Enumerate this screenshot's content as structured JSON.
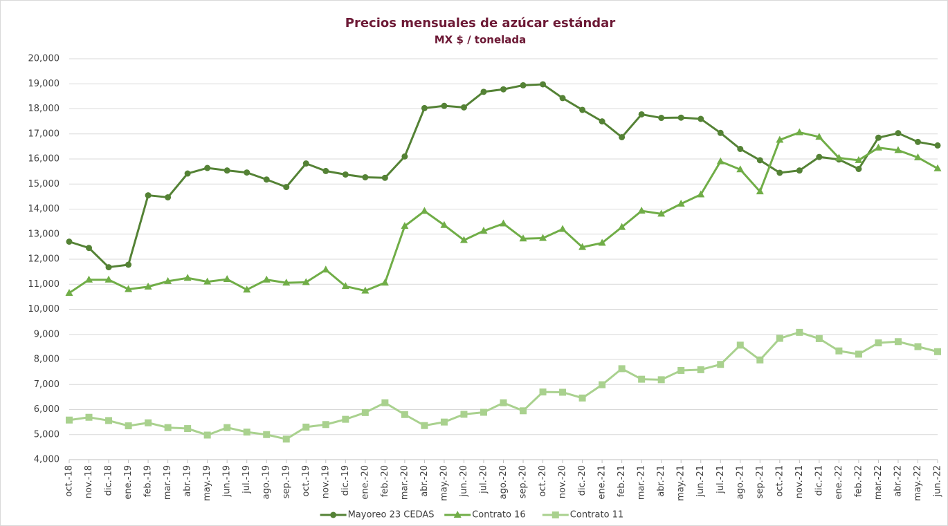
{
  "chart_data": {
    "type": "line",
    "title": "Precios mensuales de azúcar estándar",
    "subtitle": "MX $ / tonelada",
    "categories": [
      "oct.-18",
      "nov.-18",
      "dic.-18",
      "ene.-19",
      "feb.-19",
      "mar.-19",
      "abr.-19",
      "may.-19",
      "jun.-19",
      "jul.-19",
      "ago.-19",
      "sep.-19",
      "oct.-19",
      "nov.-19",
      "dic.-19",
      "ene.-20",
      "feb.-20",
      "mar.-20",
      "abr.-20",
      "may.-20",
      "jun.-20",
      "jul.-20",
      "ago.-20",
      "sep.-20",
      "oct.-20",
      "nov.-20",
      "dic.-20",
      "ene.-21",
      "feb.-21",
      "mar.-21",
      "abr.-21",
      "may.-21",
      "jun.-21",
      "jul.-21",
      "ago.-21",
      "sep.-21",
      "oct.-21",
      "nov.-21",
      "dic.-21",
      "ene.-22",
      "feb.-22",
      "mar.-22",
      "abr.-22",
      "may.-22",
      "jun.-22"
    ],
    "series": [
      {
        "name": "Mayoreo 23 CEDAS",
        "color": "#548235",
        "marker": "circle",
        "values": [
          12700,
          12450,
          11680,
          11780,
          14550,
          14470,
          15420,
          15640,
          15540,
          15460,
          15180,
          14880,
          15820,
          15520,
          15380,
          15270,
          15250,
          16100,
          18030,
          18120,
          18060,
          18680,
          18780,
          18940,
          18980,
          18430,
          17960,
          17500,
          16870,
          17780,
          17640,
          17650,
          17600,
          17040,
          16400,
          15950,
          15450,
          15540,
          16080,
          15980,
          15600,
          16850,
          17030,
          16680,
          16540
        ]
      },
      {
        "name": "Contrato 16",
        "color": "#70ad47",
        "marker": "triangle",
        "values": [
          10650,
          11180,
          11180,
          10800,
          10900,
          11120,
          11250,
          11100,
          11200,
          10780,
          11180,
          11060,
          11080,
          11580,
          10920,
          10740,
          11060,
          13320,
          13920,
          13360,
          12760,
          13130,
          13420,
          12820,
          12840,
          13200,
          12480,
          12650,
          13280,
          13930,
          13810,
          14210,
          14580,
          15900,
          15580,
          14700,
          16760,
          17060,
          16880,
          16040,
          15950,
          16450,
          16350,
          16060,
          15620
        ]
      },
      {
        "name": "Contrato 11",
        "color": "#a9d18e",
        "marker": "square",
        "values": [
          5580,
          5690,
          5560,
          5350,
          5470,
          5280,
          5240,
          4980,
          5280,
          5100,
          5000,
          4820,
          5300,
          5400,
          5610,
          5880,
          6270,
          5800,
          5360,
          5500,
          5810,
          5890,
          6270,
          5950,
          6700,
          6690,
          6460,
          6990,
          7630,
          7210,
          7190,
          7560,
          7590,
          7800,
          8570,
          7980,
          8840,
          9080,
          8830,
          8340,
          8210,
          8660,
          8710,
          8510,
          8310
        ]
      }
    ],
    "ylim": [
      4000,
      20000
    ],
    "yticks": [
      {
        "value": 4000,
        "label": "4,000"
      },
      {
        "value": 5000,
        "label": "5,000"
      },
      {
        "value": 6000,
        "label": "6,000"
      },
      {
        "value": 7000,
        "label": "7,000"
      },
      {
        "value": 8000,
        "label": "8,000"
      },
      {
        "value": 9000,
        "label": "9,000"
      },
      {
        "value": 10000,
        "label": "10,000"
      },
      {
        "value": 11000,
        "label": "11,000"
      },
      {
        "value": 12000,
        "label": "12,000"
      },
      {
        "value": 13000,
        "label": "13,000"
      },
      {
        "value": 14000,
        "label": "14,000"
      },
      {
        "value": 15000,
        "label": "15,000"
      },
      {
        "value": 16000,
        "label": "16,000"
      },
      {
        "value": 17000,
        "label": "17,000"
      },
      {
        "value": 18000,
        "label": "18,000"
      },
      {
        "value": 19000,
        "label": "19,000"
      },
      {
        "value": 20000,
        "label": "20,000"
      }
    ],
    "grid": true,
    "legend": "bottom"
  }
}
